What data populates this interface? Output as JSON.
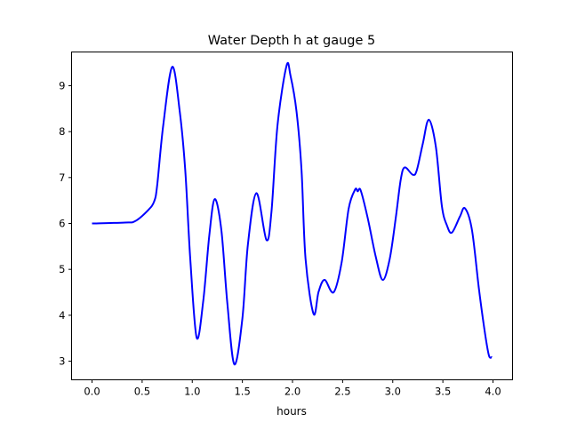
{
  "chart_data": {
    "type": "line",
    "title": "Water Depth h at gauge 5",
    "xlabel": "hours",
    "ylabel": "",
    "xlim": [
      -0.204,
      4.195
    ],
    "ylim": [
      2.594,
      9.735
    ],
    "xticks": [
      0.0,
      0.5,
      1.0,
      1.5,
      2.0,
      2.5,
      3.0,
      3.5,
      4.0
    ],
    "xtick_labels": [
      "0.0",
      "0.5",
      "1.0",
      "1.5",
      "2.0",
      "2.5",
      "3.0",
      "3.5",
      "4.0"
    ],
    "yticks": [
      3,
      4,
      5,
      6,
      7,
      8,
      9
    ],
    "ytick_labels": [
      "3",
      "4",
      "5",
      "6",
      "7",
      "8",
      "9"
    ],
    "grid": false,
    "series": [
      {
        "name": "h",
        "color": "#0000ff",
        "x": [
          0.0,
          0.33,
          0.43,
          0.56,
          0.62,
          0.65,
          0.71,
          0.8,
          0.875,
          0.93,
          0.98,
          1.044,
          1.11,
          1.17,
          1.224,
          1.29,
          1.35,
          1.42,
          1.5,
          1.555,
          1.64,
          1.74,
          1.79,
          1.85,
          1.94,
          1.98,
          2.04,
          2.09,
          2.13,
          2.21,
          2.26,
          2.32,
          2.41,
          2.49,
          2.56,
          2.625,
          2.65,
          2.68,
          2.75,
          2.83,
          2.9,
          2.97,
          3.03,
          3.08,
          3.12,
          3.2,
          3.24,
          3.3,
          3.36,
          3.43,
          3.49,
          3.54,
          3.59,
          3.67,
          3.72,
          3.79,
          3.86,
          3.92,
          3.96,
          3.99
        ],
        "y": [
          6.0,
          6.02,
          6.05,
          6.29,
          6.48,
          6.83,
          8.13,
          9.41,
          8.44,
          7.16,
          5.23,
          3.51,
          4.32,
          5.74,
          6.53,
          5.86,
          4.26,
          2.93,
          3.93,
          5.54,
          6.66,
          5.64,
          6.25,
          8.13,
          9.43,
          9.22,
          8.44,
          7.16,
          5.23,
          4.03,
          4.51,
          4.77,
          4.5,
          5.15,
          6.32,
          6.74,
          6.7,
          6.72,
          6.12,
          5.28,
          4.77,
          5.23,
          6.12,
          6.96,
          7.22,
          7.06,
          7.16,
          7.74,
          8.26,
          7.67,
          6.38,
          5.96,
          5.8,
          6.15,
          6.33,
          5.86,
          4.57,
          3.61,
          3.12,
          3.09
        ]
      }
    ]
  }
}
